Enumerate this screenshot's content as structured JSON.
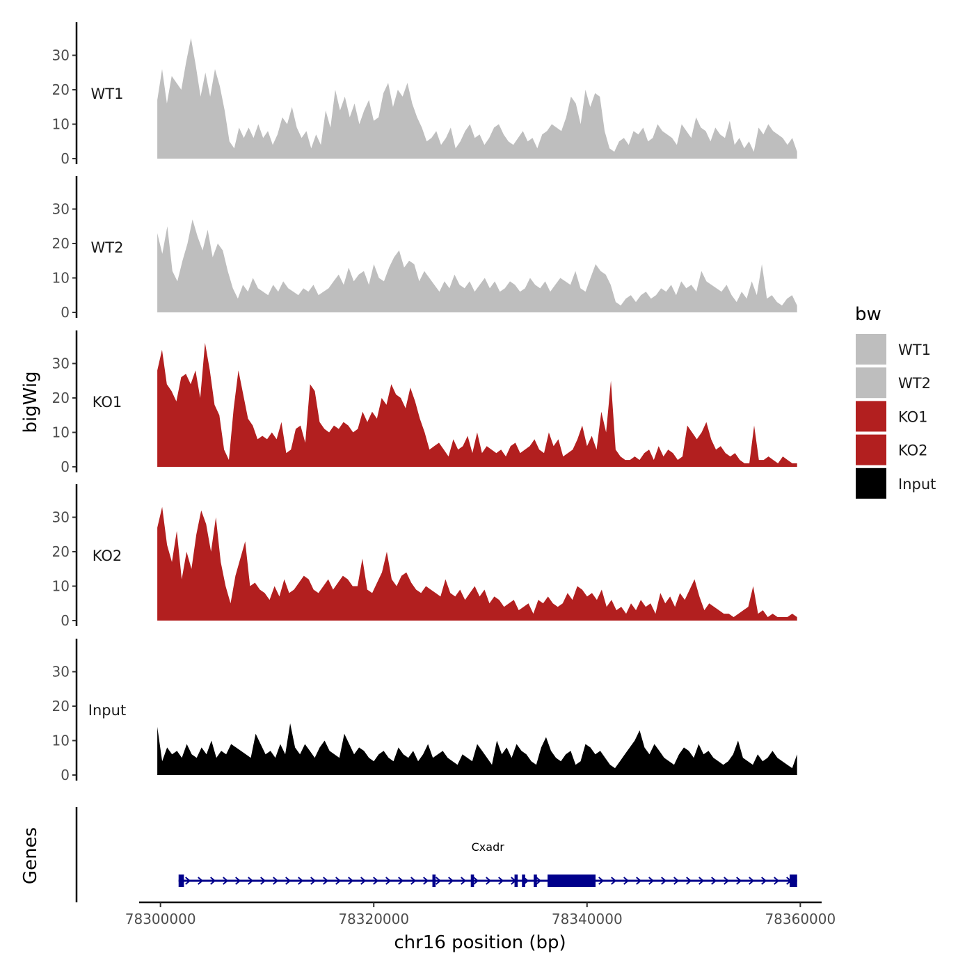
{
  "chart_data": {
    "type": "area",
    "subtype": "genome-browser-tracks",
    "y_title": "bigWig",
    "genes_title": "Genes",
    "x_title": "chr16 position (bp)",
    "xlim": [
      78298000,
      78362000
    ],
    "x_ticks": [
      78300000,
      78320000,
      78340000,
      78360000
    ],
    "x_tick_labels": [
      "78300000",
      "78320000",
      "78340000",
      "78360000"
    ],
    "ylim": [
      0,
      40
    ],
    "y_ticks": [
      0,
      10,
      20,
      30
    ],
    "y_tick_labels": [
      "0",
      "10",
      "20",
      "30"
    ],
    "data_range": [
      78299700,
      78359700
    ],
    "legend": {
      "title": "bw",
      "position": "right",
      "entries": [
        {
          "label": "WT1",
          "color": "#bebebe"
        },
        {
          "label": "WT2",
          "color": "#bebebe"
        },
        {
          "label": "KO1",
          "color": "#b21f1f"
        },
        {
          "label": "KO2",
          "color": "#b21f1f"
        },
        {
          "label": "Input",
          "color": "#000000"
        }
      ]
    },
    "series": [
      {
        "name": "WT1",
        "color": "#bebebe",
        "values": [
          17,
          26,
          16,
          24,
          22,
          20,
          28,
          35,
          27,
          18,
          25,
          18,
          26,
          21,
          14,
          5,
          3,
          9,
          6,
          9,
          6,
          10,
          6,
          8,
          4,
          7,
          12,
          10,
          15,
          9,
          6,
          8,
          3,
          7,
          4,
          14,
          9,
          20,
          14,
          18,
          12,
          16,
          10,
          14,
          17,
          11,
          12,
          19,
          22,
          15,
          20,
          18,
          22,
          16,
          12,
          9,
          5,
          6,
          8,
          4,
          6,
          9,
          3,
          5,
          8,
          10,
          6,
          7,
          4,
          6,
          9,
          10,
          7,
          5,
          4,
          6,
          8,
          5,
          6,
          3,
          7,
          8,
          10,
          9,
          8,
          12,
          18,
          16,
          10,
          20,
          15,
          19,
          18,
          8,
          3,
          2,
          5,
          6,
          4,
          8,
          7,
          9,
          5,
          6,
          10,
          8,
          7,
          6,
          4,
          10,
          8,
          6,
          12,
          9,
          8,
          5,
          9,
          7,
          6,
          11,
          4,
          6,
          3,
          5,
          2,
          9,
          7,
          10,
          8,
          7,
          6,
          4,
          6,
          2
        ]
      },
      {
        "name": "WT2",
        "color": "#bebebe",
        "values": [
          23,
          17,
          25,
          12,
          9,
          15,
          20,
          27,
          22,
          18,
          24,
          16,
          20,
          18,
          12,
          7,
          4,
          8,
          6,
          10,
          7,
          6,
          5,
          8,
          6,
          9,
          7,
          6,
          5,
          7,
          6,
          8,
          5,
          6,
          7,
          9,
          11,
          8,
          13,
          9,
          11,
          12,
          8,
          14,
          10,
          9,
          13,
          16,
          18,
          13,
          15,
          14,
          9,
          12,
          10,
          8,
          6,
          9,
          7,
          11,
          8,
          7,
          9,
          6,
          8,
          10,
          7,
          9,
          6,
          7,
          9,
          8,
          6,
          7,
          10,
          8,
          7,
          9,
          6,
          8,
          10,
          9,
          8,
          12,
          7,
          6,
          10,
          14,
          12,
          11,
          8,
          3,
          2,
          4,
          5,
          3,
          5,
          6,
          4,
          5,
          7,
          6,
          8,
          5,
          9,
          7,
          8,
          6,
          12,
          9,
          8,
          7,
          6,
          8,
          5,
          3,
          6,
          4,
          9,
          5,
          14,
          4,
          5,
          3,
          2,
          4,
          5,
          2
        ]
      },
      {
        "name": "KO1",
        "color": "#b21f1f",
        "values": [
          28,
          34,
          24,
          22,
          19,
          26,
          27,
          24,
          28,
          20,
          36,
          28,
          18,
          15,
          5,
          2,
          17,
          28,
          21,
          14,
          12,
          8,
          9,
          8,
          10,
          8,
          13,
          4,
          5,
          11,
          12,
          7,
          24,
          22,
          13,
          11,
          10,
          12,
          11,
          13,
          12,
          10,
          11,
          16,
          13,
          16,
          14,
          20,
          18,
          24,
          21,
          20,
          17,
          23,
          19,
          14,
          10,
          5,
          6,
          7,
          5,
          3,
          8,
          5,
          6,
          9,
          4,
          10,
          4,
          6,
          5,
          4,
          5,
          3,
          6,
          7,
          4,
          5,
          6,
          8,
          5,
          4,
          10,
          6,
          8,
          3,
          4,
          5,
          8,
          12,
          6,
          9,
          5,
          16,
          10,
          25,
          5,
          3,
          2,
          2,
          3,
          2,
          4,
          5,
          2,
          6,
          3,
          5,
          4,
          2,
          3,
          12,
          10,
          8,
          10,
          13,
          8,
          5,
          6,
          4,
          3,
          4,
          2,
          1,
          1,
          12,
          2,
          2,
          3,
          2,
          1,
          3,
          2,
          1,
          1
        ]
      },
      {
        "name": "KO2",
        "color": "#b21f1f",
        "values": [
          27,
          33,
          22,
          17,
          26,
          12,
          20,
          15,
          25,
          32,
          28,
          20,
          30,
          17,
          10,
          5,
          13,
          18,
          23,
          10,
          11,
          9,
          8,
          6,
          10,
          7,
          12,
          8,
          9,
          11,
          13,
          12,
          9,
          8,
          10,
          12,
          9,
          11,
          13,
          12,
          10,
          10,
          18,
          9,
          8,
          11,
          14,
          20,
          12,
          10,
          13,
          14,
          11,
          9,
          8,
          10,
          9,
          8,
          7,
          12,
          8,
          7,
          9,
          6,
          8,
          10,
          7,
          9,
          5,
          7,
          6,
          4,
          5,
          6,
          3,
          4,
          5,
          2,
          6,
          5,
          7,
          5,
          4,
          5,
          8,
          6,
          10,
          9,
          7,
          8,
          6,
          9,
          4,
          6,
          3,
          4,
          2,
          5,
          3,
          6,
          4,
          5,
          2,
          8,
          5,
          7,
          4,
          8,
          6,
          9,
          12,
          7,
          3,
          5,
          4,
          3,
          2,
          2,
          1,
          2,
          3,
          4,
          10,
          2,
          3,
          1,
          2,
          1,
          1,
          1,
          2,
          1
        ]
      },
      {
        "name": "Input",
        "color": "#000000",
        "values": [
          14,
          4,
          8,
          6,
          7,
          5,
          9,
          6,
          5,
          8,
          6,
          10,
          5,
          7,
          6,
          9,
          8,
          7,
          6,
          5,
          12,
          9,
          6,
          7,
          5,
          9,
          6,
          15,
          8,
          6,
          9,
          7,
          5,
          8,
          10,
          7,
          6,
          5,
          12,
          9,
          6,
          8,
          7,
          5,
          4,
          6,
          7,
          5,
          4,
          8,
          6,
          5,
          7,
          4,
          6,
          9,
          5,
          6,
          7,
          5,
          4,
          3,
          6,
          5,
          4,
          9,
          7,
          5,
          3,
          10,
          6,
          8,
          5,
          9,
          7,
          6,
          4,
          3,
          8,
          11,
          7,
          5,
          4,
          6,
          7,
          3,
          4,
          9,
          8,
          6,
          7,
          5,
          3,
          2,
          4,
          6,
          8,
          10,
          13,
          8,
          6,
          9,
          7,
          5,
          4,
          3,
          6,
          8,
          7,
          5,
          9,
          6,
          7,
          5,
          4,
          3,
          4,
          6,
          10,
          5,
          4,
          3,
          6,
          4,
          5,
          7,
          5,
          4,
          3,
          2,
          6
        ]
      }
    ],
    "genes": [
      {
        "name": "Cxadr",
        "start": 78301700,
        "end": 78359700,
        "strand": "+",
        "color": "#00008b",
        "exons": [
          [
            78301700,
            78302200
          ],
          [
            78325500,
            78325800
          ],
          [
            78329100,
            78329400
          ],
          [
            78333200,
            78333500
          ],
          [
            78333900,
            78334200
          ],
          [
            78335000,
            78335300
          ],
          [
            78336300,
            78340800
          ],
          [
            78359000,
            78359700
          ]
        ]
      }
    ]
  }
}
